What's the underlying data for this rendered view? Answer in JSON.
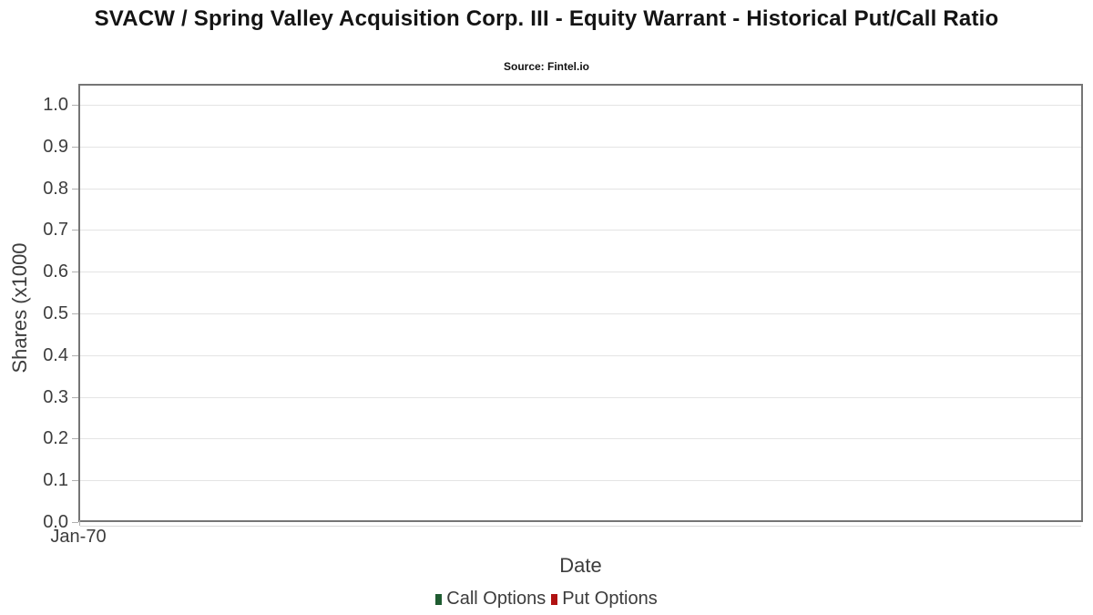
{
  "chart_data": {
    "type": "line",
    "title": "SVACW / Spring Valley Acquisition Corp. III - Equity Warrant - Historical Put/Call Ratio",
    "subtitle": "Source: Fintel.io",
    "xlabel": "Date",
    "ylabel": "Shares (x1000",
    "x_ticks": [
      "Jan-70"
    ],
    "y_ticks": [
      0.0,
      0.1,
      0.2,
      0.3,
      0.4,
      0.5,
      0.6,
      0.7,
      0.8,
      0.9,
      1.0
    ],
    "y_tick_decimals": 1,
    "ylim": [
      0.0,
      1.05
    ],
    "grid": true,
    "legend_position": "bottom-center",
    "series": [
      {
        "name": "Call Options",
        "color": "#1f5c31",
        "x": [],
        "values": []
      },
      {
        "name": "Put Options",
        "color": "#b01212",
        "x": [],
        "values": []
      }
    ]
  },
  "colors": {
    "background": "#ffffff",
    "plot_border": "#757575",
    "gridline": "#e4e4e4",
    "tick_mark": "#b0b0b0",
    "sub_axis_line": "#d9d9d9",
    "axis_text": "#3d3d3d",
    "title_text": "#141414"
  },
  "icons": {
    "legend_marker": "filled-square-icon"
  }
}
